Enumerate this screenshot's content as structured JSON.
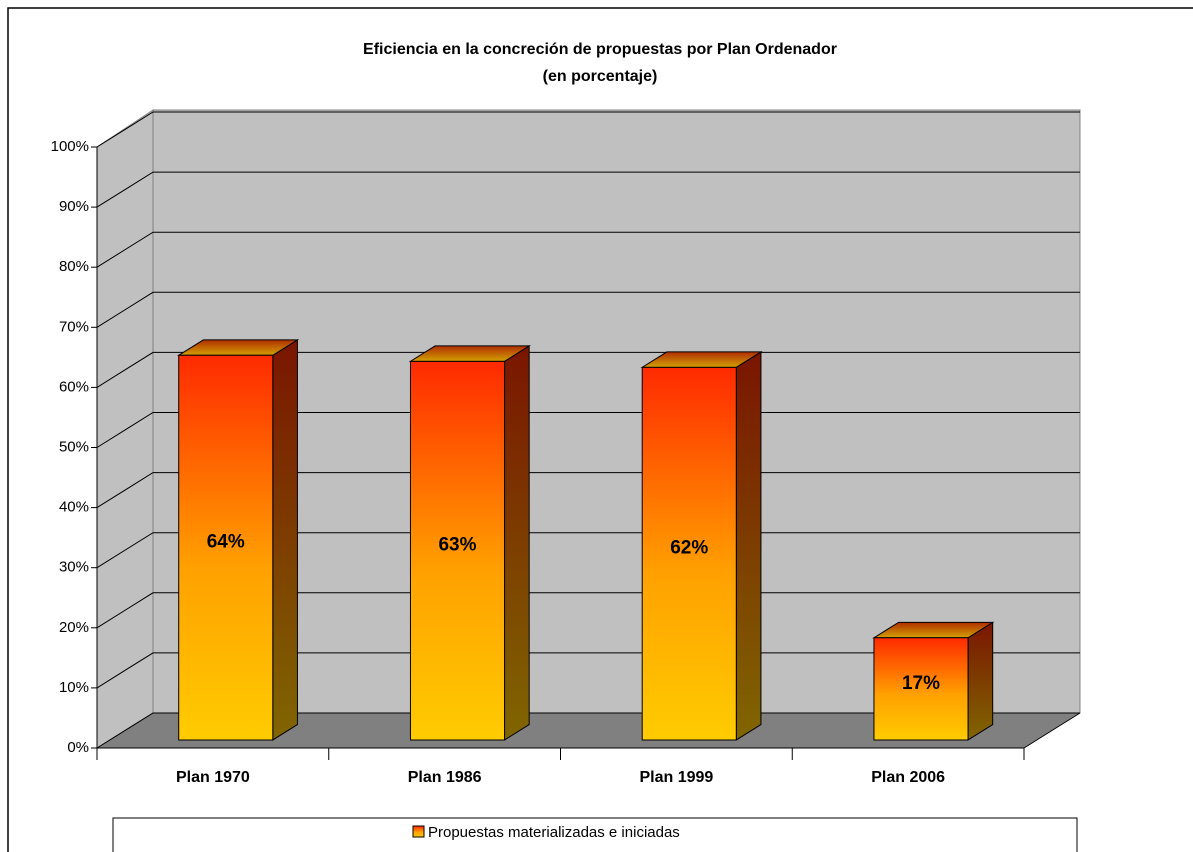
{
  "chart_data": {
    "type": "bar3d",
    "title": "Eficiencia en la concreción de propuestas por Plan Ordenador",
    "subtitle": "(en porcentaje)",
    "categories": [
      "Plan 1970",
      "Plan 1986",
      "Plan 1999",
      "Plan 2006"
    ],
    "series": [
      {
        "name": "Propuestas materializadas e iniciadas",
        "color": "#ff8000",
        "values": [
          64,
          63,
          62,
          17
        ],
        "value_labels": [
          "64%",
          "63%",
          "62%",
          "17%"
        ]
      }
    ],
    "ylim": [
      0,
      100
    ],
    "yticks": [
      {
        "value": 0,
        "label": "0%"
      },
      {
        "value": 10,
        "label": "10%"
      },
      {
        "value": 20,
        "label": "20%"
      },
      {
        "value": 30,
        "label": "30%"
      },
      {
        "value": 40,
        "label": "40%"
      },
      {
        "value": 50,
        "label": "50%"
      },
      {
        "value": 60,
        "label": "60%"
      },
      {
        "value": 70,
        "label": "70%"
      },
      {
        "value": 80,
        "label": "80%"
      },
      {
        "value": 90,
        "label": "90%"
      },
      {
        "value": 100,
        "label": "100%"
      }
    ],
    "grid": true,
    "legend": "bottom"
  }
}
